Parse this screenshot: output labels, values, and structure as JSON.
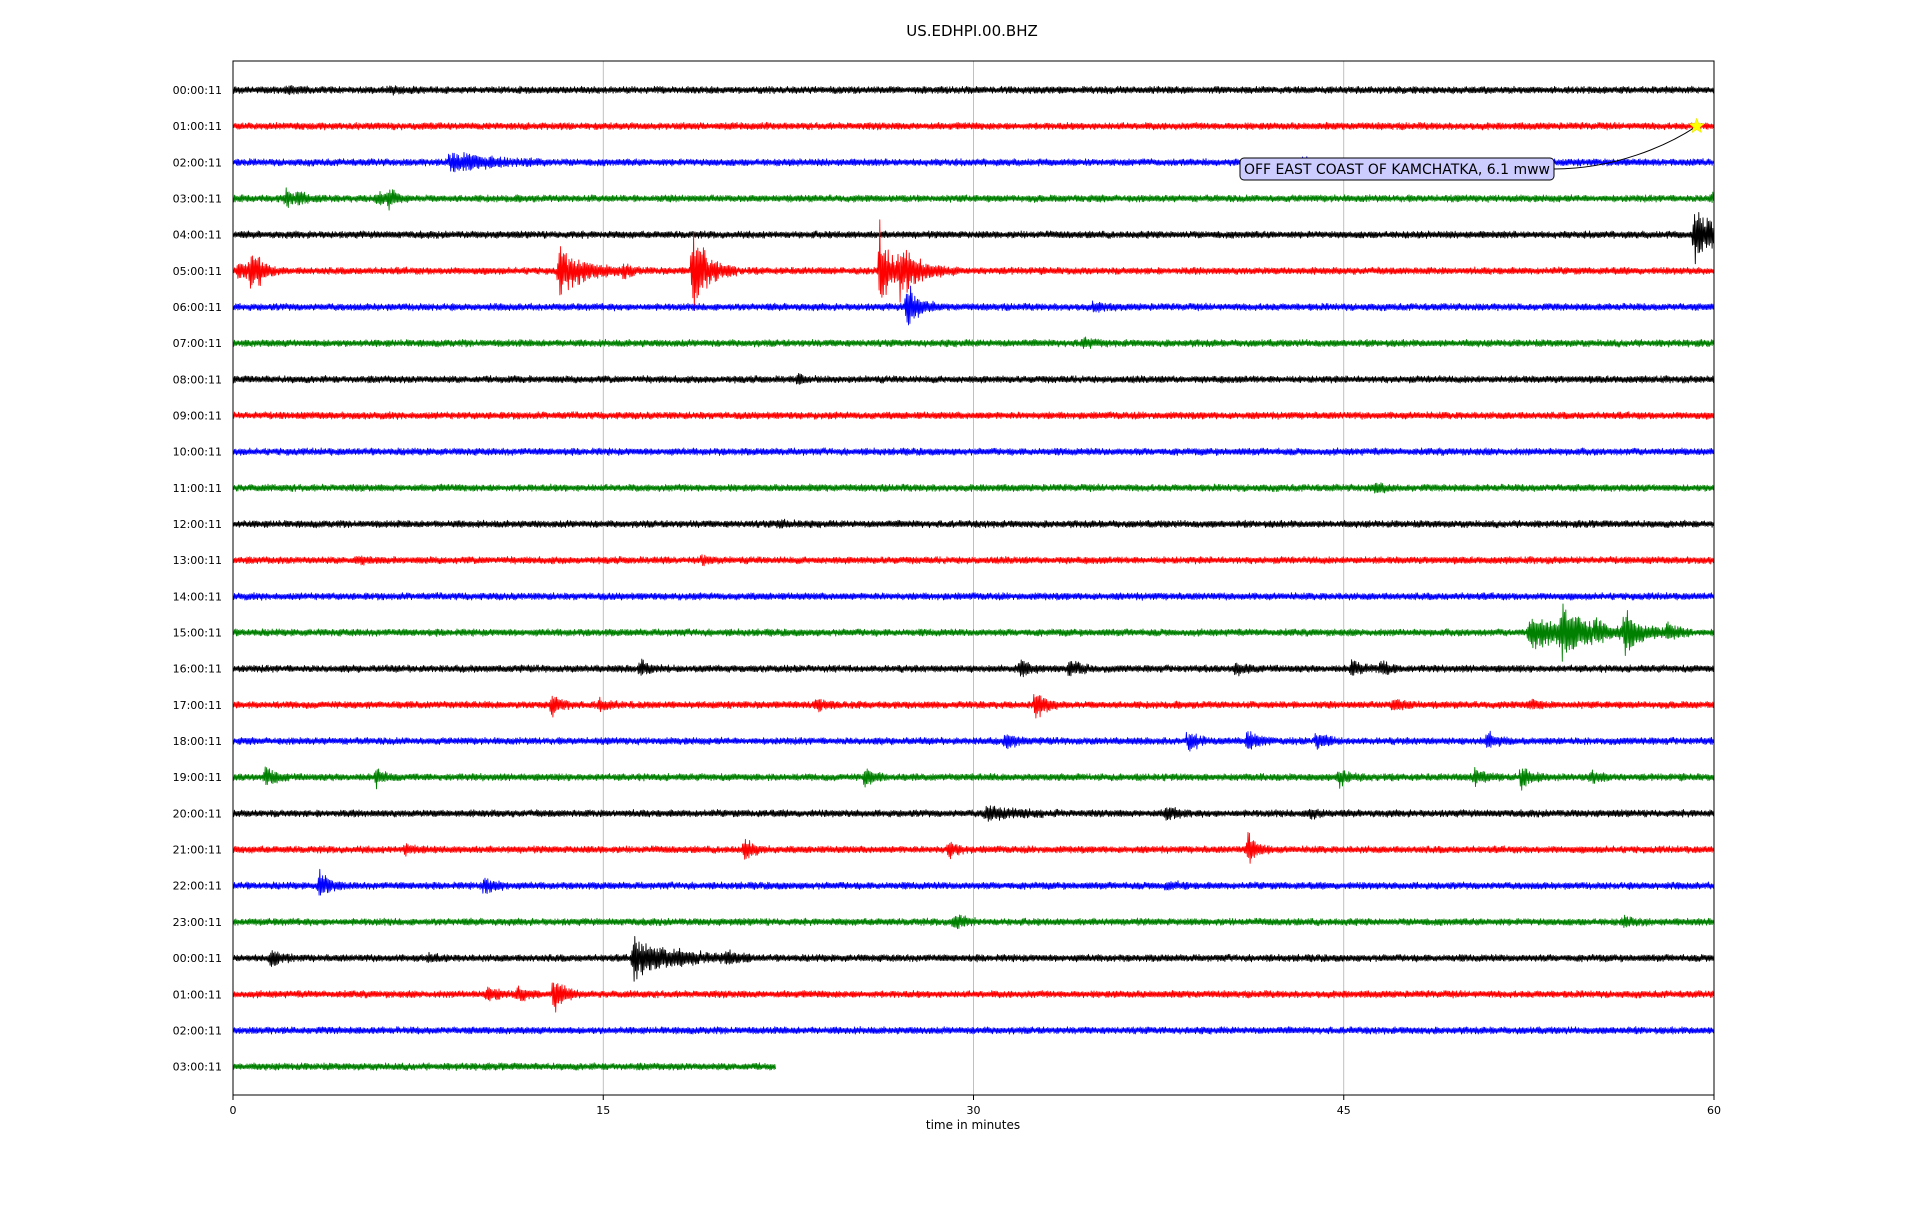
{
  "chart_data": {
    "type": "line",
    "subtype": "seismogram-dayplot",
    "title": "US.EDHPI.00.BHZ",
    "xlabel": "time in minutes",
    "ylabel": "",
    "xlim": [
      0,
      60
    ],
    "x_ticks": [
      "0",
      "15",
      "30",
      "45",
      "60"
    ],
    "grid": "vertical-at-x-ticks",
    "row_colors": [
      "#000000",
      "#ff0000",
      "#0000ff",
      "#008000"
    ],
    "rows": [
      {
        "label": "00:00:11",
        "end": 60,
        "events": [
          {
            "t": 2.2,
            "a": 4
          },
          {
            "t": 6.3,
            "a": 4
          }
        ]
      },
      {
        "label": "01:00:11",
        "end": 60,
        "events": []
      },
      {
        "label": "02:00:11",
        "end": 60,
        "events": [
          {
            "t": 8.8,
            "a": 12,
            "d": 1.4
          },
          {
            "t": 43.4,
            "a": 5
          }
        ]
      },
      {
        "label": "03:00:11",
        "end": 60,
        "events": [
          {
            "t": 2.1,
            "a": 10
          },
          {
            "t": 2.6,
            "a": 7
          },
          {
            "t": 5.8,
            "a": 7
          },
          {
            "t": 6.3,
            "a": 9
          },
          {
            "t": 59.9,
            "a": 5
          }
        ]
      },
      {
        "label": "04:00:11",
        "end": 60,
        "events": [
          {
            "t": 59.2,
            "a": 34,
            "d": 0.8
          }
        ]
      },
      {
        "label": "05:00:11",
        "end": 60,
        "events": [
          {
            "t": 0.2,
            "a": 14
          },
          {
            "t": 0.7,
            "a": 18
          },
          {
            "t": 1.0,
            "a": 10
          },
          {
            "t": 13.2,
            "a": 28,
            "d": 1.0
          },
          {
            "t": 15.8,
            "a": 6
          },
          {
            "t": 18.6,
            "a": 50,
            "d": 0.6
          },
          {
            "t": 26.2,
            "a": 58,
            "d": 0.4
          },
          {
            "t": 27.0,
            "a": 30,
            "d": 0.8
          }
        ]
      },
      {
        "label": "06:00:11",
        "end": 60,
        "events": [
          {
            "t": 27.3,
            "a": 30,
            "d": 0.4
          },
          {
            "t": 34.9,
            "a": 5
          }
        ]
      },
      {
        "label": "07:00:11",
        "end": 60,
        "events": [
          {
            "t": 34.4,
            "a": 6
          }
        ]
      },
      {
        "label": "08:00:11",
        "end": 60,
        "events": [
          {
            "t": 22.9,
            "a": 4
          }
        ]
      },
      {
        "label": "09:00:11",
        "end": 60,
        "events": []
      },
      {
        "label": "10:00:11",
        "end": 60,
        "events": []
      },
      {
        "label": "11:00:11",
        "end": 60,
        "events": [
          {
            "t": 46.3,
            "a": 5
          }
        ]
      },
      {
        "label": "12:00:11",
        "end": 60,
        "events": [
          {
            "t": 22.1,
            "a": 4
          }
        ]
      },
      {
        "label": "13:00:11",
        "end": 60,
        "events": [
          {
            "t": 5.0,
            "a": 4
          },
          {
            "t": 19.0,
            "a": 4
          }
        ]
      },
      {
        "label": "14:00:11",
        "end": 60,
        "events": []
      },
      {
        "label": "15:00:11",
        "end": 60,
        "events": [
          {
            "t": 52.5,
            "a": 18,
            "d": 2.2
          },
          {
            "t": 53.8,
            "a": 32,
            "d": 0.6
          },
          {
            "t": 55.2,
            "a": 10
          },
          {
            "t": 56.4,
            "a": 24,
            "d": 0.5
          },
          {
            "t": 58.1,
            "a": 10
          }
        ]
      },
      {
        "label": "16:00:11",
        "end": 60,
        "events": [
          {
            "t": 16.5,
            "a": 10
          },
          {
            "t": 31.9,
            "a": 10
          },
          {
            "t": 33.9,
            "a": 12
          },
          {
            "t": 40.6,
            "a": 8
          },
          {
            "t": 45.3,
            "a": 12
          },
          {
            "t": 46.5,
            "a": 10
          }
        ]
      },
      {
        "label": "17:00:11",
        "end": 60,
        "events": [
          {
            "t": 12.9,
            "a": 12
          },
          {
            "t": 14.8,
            "a": 6
          },
          {
            "t": 23.6,
            "a": 8
          },
          {
            "t": 32.5,
            "a": 18
          },
          {
            "t": 47.0,
            "a": 8
          },
          {
            "t": 52.5,
            "a": 6
          }
        ]
      },
      {
        "label": "18:00:11",
        "end": 60,
        "events": [
          {
            "t": 31.3,
            "a": 10
          },
          {
            "t": 38.7,
            "a": 12
          },
          {
            "t": 41.1,
            "a": 14
          },
          {
            "t": 43.9,
            "a": 12
          },
          {
            "t": 50.8,
            "a": 10
          }
        ]
      },
      {
        "label": "19:00:11",
        "end": 60,
        "events": [
          {
            "t": 1.3,
            "a": 12
          },
          {
            "t": 5.8,
            "a": 10
          },
          {
            "t": 25.6,
            "a": 10
          },
          {
            "t": 44.8,
            "a": 10
          },
          {
            "t": 50.3,
            "a": 12
          },
          {
            "t": 52.2,
            "a": 14
          },
          {
            "t": 55.0,
            "a": 8
          }
        ]
      },
      {
        "label": "20:00:11",
        "end": 60,
        "events": [
          {
            "t": 30.5,
            "a": 8,
            "d": 1.0
          },
          {
            "t": 37.8,
            "a": 8
          },
          {
            "t": 43.6,
            "a": 6
          }
        ]
      },
      {
        "label": "21:00:11",
        "end": 60,
        "events": [
          {
            "t": 7.0,
            "a": 6
          },
          {
            "t": 20.7,
            "a": 12
          },
          {
            "t": 29.0,
            "a": 8
          },
          {
            "t": 41.1,
            "a": 18
          }
        ]
      },
      {
        "label": "22:00:11",
        "end": 60,
        "events": [
          {
            "t": 3.5,
            "a": 18
          },
          {
            "t": 10.2,
            "a": 10
          },
          {
            "t": 37.8,
            "a": 5
          }
        ]
      },
      {
        "label": "23:00:11",
        "end": 60,
        "events": [
          {
            "t": 29.2,
            "a": 10
          },
          {
            "t": 56.3,
            "a": 5
          }
        ]
      },
      {
        "label": "00:00:11",
        "end": 60,
        "events": [
          {
            "t": 1.5,
            "a": 10
          },
          {
            "t": 7.9,
            "a": 5
          },
          {
            "t": 16.2,
            "a": 22,
            "d": 1.6
          },
          {
            "t": 20.0,
            "a": 6
          }
        ]
      },
      {
        "label": "01:00:11",
        "end": 60,
        "events": [
          {
            "t": 10.3,
            "a": 10
          },
          {
            "t": 11.5,
            "a": 10
          },
          {
            "t": 13.0,
            "a": 24
          }
        ]
      },
      {
        "label": "02:00:11",
        "end": 60,
        "events": []
      },
      {
        "label": "03:00:11",
        "end": 22,
        "events": []
      }
    ],
    "annotation": {
      "text": "OFF EAST COAST OF KAMCHATKA, 6.1 mww",
      "row": 1,
      "t": 59.3,
      "marker": "star",
      "marker_color": "#ffff00",
      "box_fill": "#ccccff"
    }
  }
}
